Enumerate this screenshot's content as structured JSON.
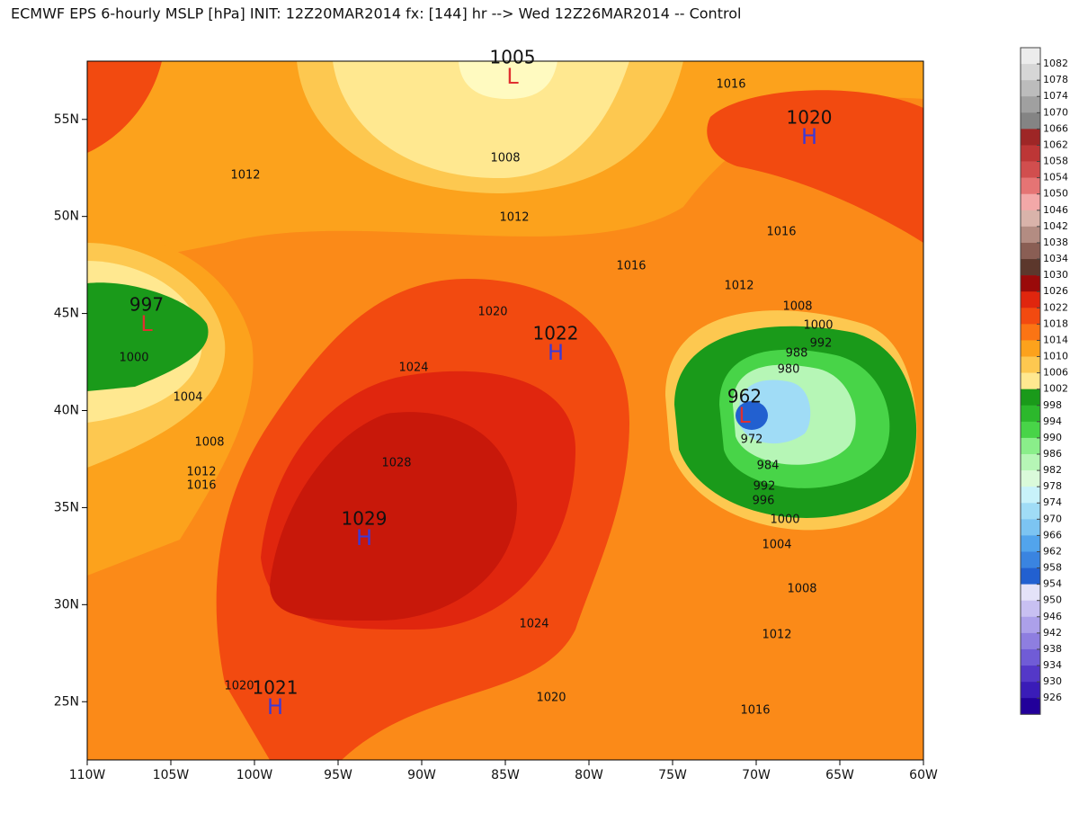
{
  "title": "ECMWF EPS 6-hourly MSLP [hPa] INIT: 12Z20MAR2014 fx: [144] hr --> Wed 12Z26MAR2014 -- Control",
  "map": {
    "xlim": [
      -110,
      -60
    ],
    "ylim": [
      22,
      58
    ],
    "xticks": [
      {
        "value": -110,
        "label": "110W"
      },
      {
        "value": -105,
        "label": "105W"
      },
      {
        "value": -100,
        "label": "100W"
      },
      {
        "value": -95,
        "label": "95W"
      },
      {
        "value": -90,
        "label": "90W"
      },
      {
        "value": -85,
        "label": "85W"
      },
      {
        "value": -80,
        "label": "80W"
      },
      {
        "value": -75,
        "label": "75W"
      },
      {
        "value": -70,
        "label": "70W"
      },
      {
        "value": -65,
        "label": "65W"
      },
      {
        "value": -60,
        "label": "60W"
      }
    ],
    "yticks": [
      {
        "value": 25,
        "label": "25N"
      },
      {
        "value": 30,
        "label": "30N"
      },
      {
        "value": 35,
        "label": "35N"
      },
      {
        "value": 40,
        "label": "40N"
      },
      {
        "value": 45,
        "label": "45N"
      },
      {
        "value": 50,
        "label": "50N"
      },
      {
        "value": 55,
        "label": "55N"
      }
    ],
    "centers": [
      {
        "symbol": "L",
        "value": 1005
      },
      {
        "symbol": "H",
        "value": 1020
      },
      {
        "symbol": "L",
        "value": 997
      },
      {
        "symbol": "H",
        "value": 1022
      },
      {
        "symbol": "L",
        "value": 962
      },
      {
        "symbol": "H",
        "value": 1029
      },
      {
        "symbol": "H",
        "value": 1021
      }
    ],
    "contour_labels": [
      1016,
      1008,
      1012,
      1012,
      1016,
      1016,
      1012,
      1020,
      1008,
      1000,
      992,
      988,
      980,
      1000,
      1024,
      1004,
      1008,
      972,
      1028,
      1012,
      1016,
      984,
      992,
      996,
      1000,
      1004,
      1008,
      1024,
      1012,
      1020,
      1020,
      1016
    ]
  },
  "colorbar": {
    "levels": [
      1082,
      1078,
      1074,
      1070,
      1066,
      1062,
      1058,
      1054,
      1050,
      1046,
      1042,
      1038,
      1034,
      1030,
      1026,
      1022,
      1018,
      1014,
      1010,
      1006,
      1002,
      998,
      994,
      990,
      986,
      982,
      978,
      974,
      970,
      966,
      962,
      958,
      954,
      950,
      946,
      942,
      938,
      934,
      930,
      926
    ],
    "colors": [
      "#ececec",
      "#d6d6d6",
      "#bcbcbc",
      "#a0a0a0",
      "#848484",
      "#9e2626",
      "#bd3636",
      "#d14e4e",
      "#e57474",
      "#f3a8a8",
      "#d9b3aa",
      "#b38c82",
      "#8a5e54",
      "#5c372c",
      "#9a0a0a",
      "#e0260e",
      "#f24a10",
      "#fb7414",
      "#fca21c",
      "#fdc850",
      "#ffe890",
      "#1a9a1a",
      "#2cb82c",
      "#48d448",
      "#8aee8a",
      "#b6f6b6",
      "#dafada",
      "#c8f2fa",
      "#a0dcf6",
      "#7cc4f2",
      "#52a4ec",
      "#3a84e0",
      "#2260d0",
      "#e4e2f8",
      "#c8c0f2",
      "#aca0ea",
      "#8e7ee0",
      "#705cd6",
      "#5438c8",
      "#3a1cb8",
      "#22009a"
    ]
  }
}
